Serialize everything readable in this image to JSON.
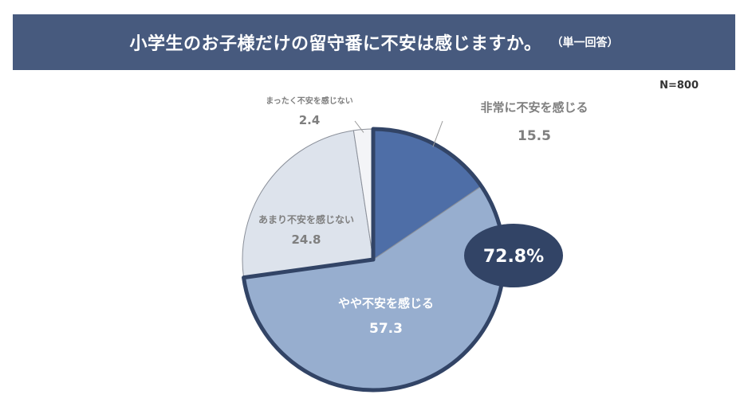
{
  "title": "小学生のお子様だけの留守番に不安は感じますか。",
  "title_note": "（単一回答）",
  "sample_size": "N=800",
  "highlight": "72.8%",
  "chart_data": {
    "type": "pie",
    "title": "小学生のお子様だけの留守番に不安は感じますか。",
    "slices": [
      {
        "label": "非常に不安を感じる",
        "value": 15.5,
        "value_text": "15.5",
        "color": "#4e6ea7"
      },
      {
        "label": "やや不安を感じる",
        "value": 57.3,
        "value_text": "57.3",
        "color": "#97aecf"
      },
      {
        "label": "あまり不安を感じない",
        "value": 24.8,
        "value_text": "24.8",
        "color": "#dde3ec"
      },
      {
        "label": "まったく不安を感じない",
        "value": 2.4,
        "value_text": "2.4",
        "color": "#f3f4f7"
      }
    ],
    "highlight_group": {
      "slices": [
        "非常に不安を感じる",
        "やや不安を感じる"
      ],
      "total": "72.8%"
    }
  },
  "colors": {
    "title_bg": "#475a7e",
    "highlight_bg": "#324466",
    "outline": "#324466"
  }
}
